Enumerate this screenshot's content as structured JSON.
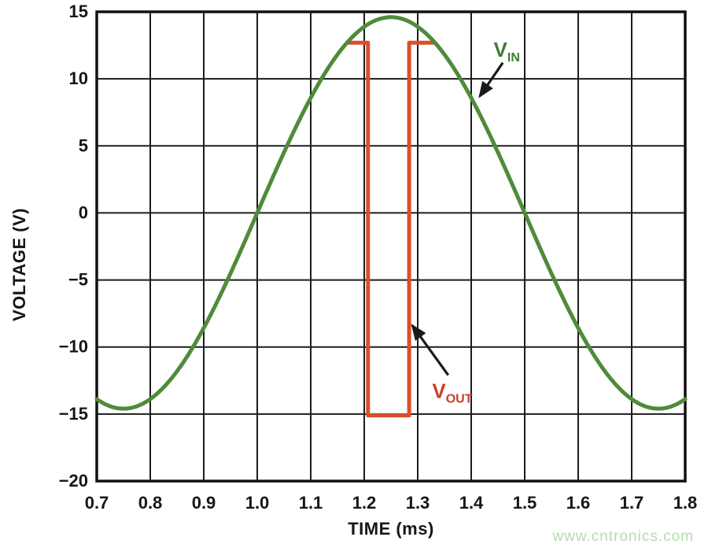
{
  "watermark": {
    "text": "www.cntronics.com",
    "color": "#b5dcae"
  },
  "chart_data": {
    "type": "line",
    "title": "",
    "xlabel": "TIME (ms)",
    "ylabel": "VOLTAGE (V)",
    "xlim": [
      0.7,
      1.8
    ],
    "ylim": [
      -20,
      15
    ],
    "xticks": [
      0.7,
      0.8,
      0.9,
      1.0,
      1.1,
      1.2,
      1.3,
      1.4,
      1.5,
      1.6,
      1.7,
      1.8
    ],
    "xtick_labels": [
      "0.7",
      "0.8",
      "0.9",
      "1.0",
      "1.1",
      "1.2",
      "1.3",
      "1.4",
      "1.5",
      "1.6",
      "1.7",
      "1.8"
    ],
    "yticks": [
      15,
      10,
      5,
      0,
      -5,
      -10,
      -15,
      -20
    ],
    "ytick_labels": [
      "15",
      "10",
      "5",
      "0",
      "−5",
      "−10",
      "−15",
      "−20"
    ],
    "grid": true,
    "grid_color": "#1c1c1c",
    "border_color": "#111111",
    "background": "#ffffff",
    "series": [
      {
        "name": "VIN",
        "label_main": "V",
        "label_sub": "IN",
        "type": "sine",
        "color": "#4e8b3a",
        "amplitude_v": 14.6,
        "period_ms": 1.0,
        "rising_zero_crossing_ms": 1.0,
        "t_range": [
          0.7,
          1.8
        ]
      },
      {
        "name": "VOUT",
        "label_main": "V",
        "label_sub": "OUT",
        "type": "polyline",
        "color": "#d94f2b",
        "points": [
          [
            1.168,
            12.7
          ],
          [
            1.207,
            12.7
          ],
          [
            1.207,
            -15.1
          ],
          [
            1.284,
            -15.1
          ],
          [
            1.284,
            12.7
          ],
          [
            1.332,
            12.7
          ]
        ]
      }
    ],
    "annotations": [
      {
        "id": "vin",
        "main": "V",
        "sub": "IN",
        "color": "#3f7d31",
        "text_pos": [
          1.442,
          11.65
        ],
        "arrow_from": [
          1.459,
          11.2
        ],
        "arrow_to": [
          1.416,
          8.7
        ],
        "arrow_color": "#1a1a1a"
      },
      {
        "id": "vout",
        "main": "V",
        "sub": "OUT",
        "color": "#c8402a",
        "text_pos": [
          1.327,
          -13.8
        ],
        "arrow_from": [
          1.357,
          -12.1
        ],
        "arrow_to": [
          1.29,
          -8.4
        ],
        "arrow_color": "#1a1a1a"
      }
    ]
  }
}
